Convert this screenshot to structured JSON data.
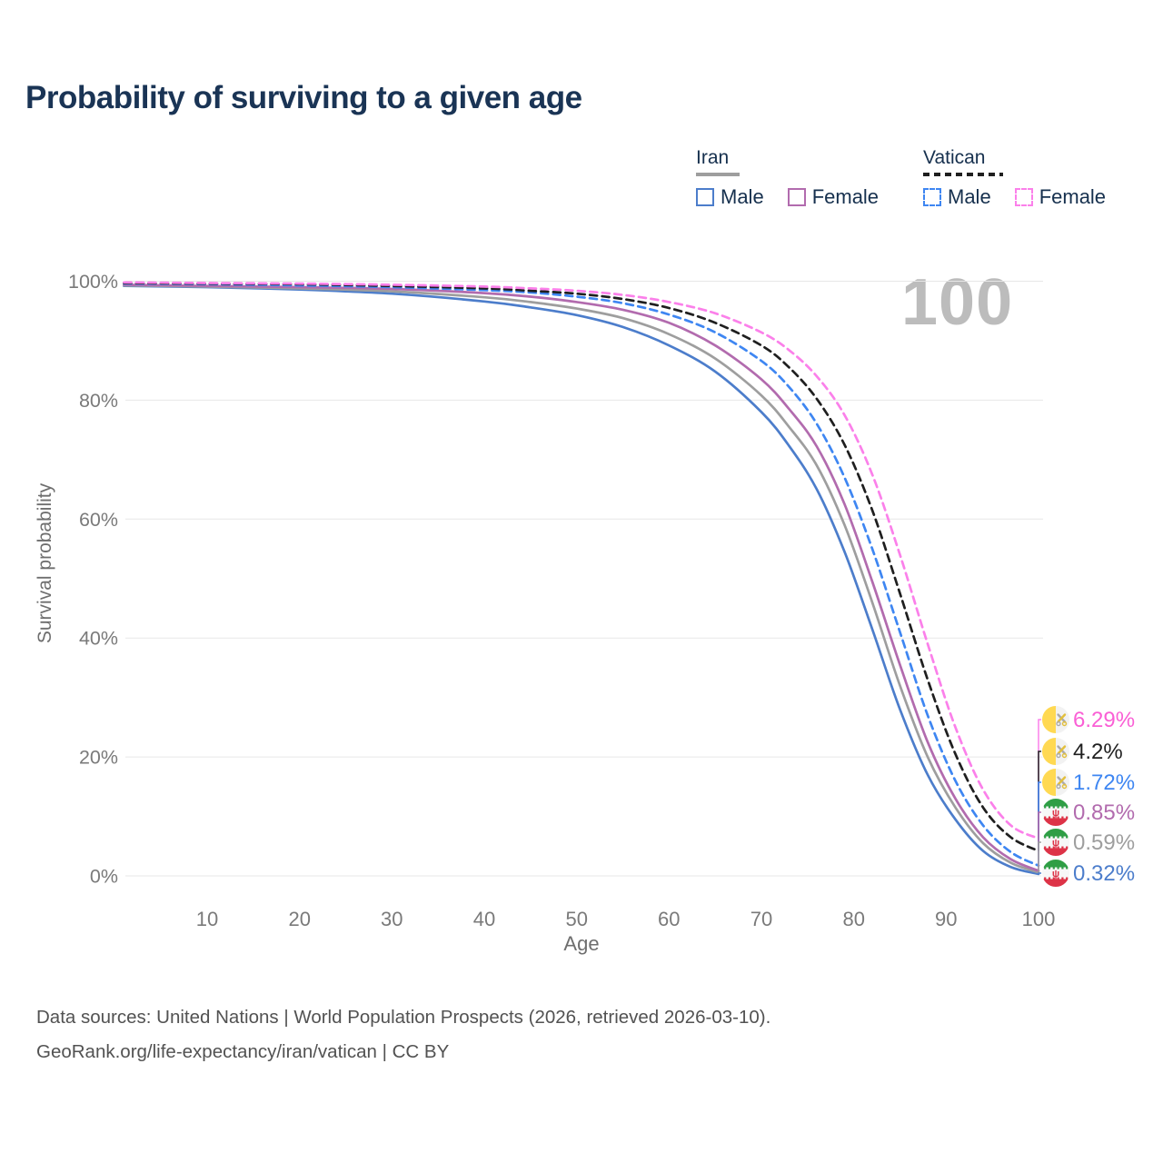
{
  "title": "Probability of surviving to a given age",
  "watermark_age": "100",
  "legend": {
    "groups": [
      {
        "label": "Iran",
        "line_style": "solid",
        "line_color": "#9e9e9e",
        "items": [
          {
            "label": "Male",
            "color": "#4c7dcb",
            "dash": "solid"
          },
          {
            "label": "Female",
            "color": "#b26bae",
            "dash": "solid"
          }
        ]
      },
      {
        "label": "Vatican",
        "line_style": "dashed",
        "line_color": "#1f1f1f",
        "items": [
          {
            "label": "Male",
            "color": "#3e86f2",
            "dash": "dashed"
          },
          {
            "label": "Female",
            "color": "#fb80ea",
            "dash": "dashed"
          }
        ]
      }
    ]
  },
  "chart_data": {
    "type": "line",
    "title": "Probability of surviving to a given age",
    "xlabel": "Age",
    "ylabel": "Survival probability",
    "xlim": [
      1,
      100
    ],
    "ylim": [
      0,
      100
    ],
    "grid": "horizontal",
    "xticks": [
      10,
      20,
      30,
      40,
      50,
      60,
      70,
      80,
      90,
      100
    ],
    "xtick_labels": [
      "10",
      "20",
      "30",
      "40",
      "50",
      "60",
      "70",
      "80",
      "90",
      "100"
    ],
    "yticks": [
      0,
      20,
      40,
      60,
      80,
      100
    ],
    "ytick_labels": [
      "0%",
      "20%",
      "40%",
      "60%",
      "80%",
      "100%"
    ],
    "x": [
      1,
      10,
      20,
      30,
      40,
      45,
      50,
      55,
      60,
      65,
      70,
      73,
      76,
      79,
      82,
      85,
      88,
      91,
      94,
      97,
      100
    ],
    "series": [
      {
        "name": "Iran Male",
        "country": "Iran",
        "sex": "Male",
        "color": "#4c7dcb",
        "dash": "solid",
        "flag": "iran",
        "end_label": "0.32%",
        "end_label_color": "#4c7dcb",
        "values": [
          99.2,
          99.0,
          98.6,
          97.9,
          96.6,
          95.6,
          94.3,
          92.3,
          89.2,
          84.8,
          78.0,
          72.3,
          65.0,
          54.5,
          41.5,
          28.0,
          17.0,
          9.5,
          4.2,
          1.5,
          0.32
        ]
      },
      {
        "name": "Iran",
        "country": "Iran",
        "sex": "Both",
        "color": "#9e9e9e",
        "dash": "solid",
        "flag": "iran",
        "end_label": "0.59%",
        "end_label_color": "#9e9e9e",
        "values": [
          99.3,
          99.1,
          98.8,
          98.3,
          97.3,
          96.5,
          95.4,
          93.8,
          91.1,
          87.0,
          80.8,
          75.5,
          69.0,
          59.0,
          46.0,
          32.0,
          20.0,
          11.5,
          5.5,
          2.2,
          0.59
        ]
      },
      {
        "name": "Iran Female",
        "country": "Iran",
        "sex": "Female",
        "color": "#b26bae",
        "dash": "solid",
        "flag": "iran",
        "end_label": "0.85%",
        "end_label_color": "#b26bae",
        "values": [
          99.4,
          99.2,
          99.0,
          98.7,
          98.0,
          97.4,
          96.5,
          95.2,
          93.0,
          89.2,
          83.5,
          78.5,
          72.2,
          62.5,
          49.5,
          35.5,
          22.5,
          13.0,
          6.5,
          2.8,
          0.85
        ]
      },
      {
        "name": "Vatican Male",
        "country": "Vatican",
        "sex": "Male",
        "color": "#3e86f2",
        "dash": "dashed",
        "flag": "vatican",
        "end_label": "1.72%",
        "end_label_color": "#3e86f2",
        "values": [
          99.6,
          99.5,
          99.3,
          99.0,
          98.5,
          98.1,
          97.4,
          96.3,
          94.4,
          91.4,
          86.6,
          82.2,
          76.0,
          67.0,
          55.0,
          41.0,
          27.0,
          16.0,
          8.5,
          4.0,
          1.72
        ]
      },
      {
        "name": "Vatican",
        "country": "Vatican",
        "sex": "Both",
        "color": "#1f1f1f",
        "dash": "dashed",
        "flag": "vatican",
        "end_label": "4.2%",
        "end_label_color": "#1f1f1f",
        "values": [
          99.7,
          99.6,
          99.5,
          99.2,
          98.8,
          98.4,
          97.9,
          97.0,
          95.5,
          93.0,
          89.2,
          85.5,
          80.2,
          72.5,
          61.5,
          47.5,
          33.0,
          20.5,
          11.5,
          6.5,
          4.2
        ]
      },
      {
        "name": "Vatican Female",
        "country": "Vatican",
        "sex": "Female",
        "color": "#fb80ea",
        "dash": "dashed",
        "flag": "vatican",
        "end_label": "6.29%",
        "end_label_color": "#fa5fd5",
        "values": [
          99.8,
          99.7,
          99.6,
          99.4,
          99.1,
          98.8,
          98.4,
          97.7,
          96.5,
          94.6,
          91.4,
          88.4,
          84.0,
          77.5,
          67.5,
          54.0,
          39.0,
          25.0,
          14.5,
          8.5,
          6.29
        ]
      }
    ]
  },
  "footer": {
    "line1": "Data sources: United Nations | World Population Prospects (2026, retrieved 2026-03-10).",
    "line2": "GeoRank.org/life-expectancy/iran/vatican | CC BY"
  }
}
